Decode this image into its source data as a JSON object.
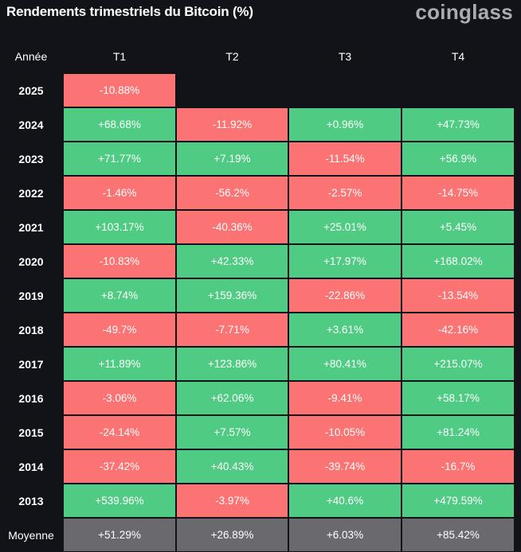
{
  "header": {
    "title": "Rendements trimestriels du Bitcoin (%)",
    "brand": "coinglass"
  },
  "table": {
    "columns": [
      "Année",
      "T1",
      "T2",
      "T3",
      "T4"
    ],
    "rows": [
      [
        "2025",
        "-10.88%"
      ],
      [
        "2024",
        "+68.68%",
        "-11.92%",
        "+0.96%",
        "+47.73%"
      ],
      [
        "2023",
        "+71.77%",
        "+7.19%",
        "-11.54%",
        "+56.9%"
      ],
      [
        "2022",
        "-1.46%",
        "-56.2%",
        "-2.57%",
        "-14.75%"
      ],
      [
        "2021",
        "+103.17%",
        "-40.36%",
        "+25.01%",
        "+5.45%"
      ],
      [
        "2020",
        "-10.83%",
        "+42.33%",
        "+17.97%",
        "+168.02%"
      ],
      [
        "2019",
        "+8.74%",
        "+159.36%",
        "-22.86%",
        "-13.54%"
      ],
      [
        "2018",
        "-49.7%",
        "-7.71%",
        "+3.61%",
        "-42.16%"
      ],
      [
        "2017",
        "+11.89%",
        "+123.86%",
        "+80.41%",
        "+215.07%"
      ],
      [
        "2016",
        "-3.06%",
        "+62.06%",
        "-9.41%",
        "+58.17%"
      ],
      [
        "2015",
        "-24.14%",
        "+7.57%",
        "-10.05%",
        "+81.24%"
      ],
      [
        "2014",
        "-37.42%",
        "+40.43%",
        "-39.74%",
        "-16.7%"
      ],
      [
        "2013",
        "+539.96%",
        "-3.97%",
        "+40.6%",
        "+479.59%"
      ]
    ],
    "footer": [
      "Moyenne",
      "+51.29%",
      "+26.89%",
      "+6.03%",
      "+85.42%"
    ]
  }
}
